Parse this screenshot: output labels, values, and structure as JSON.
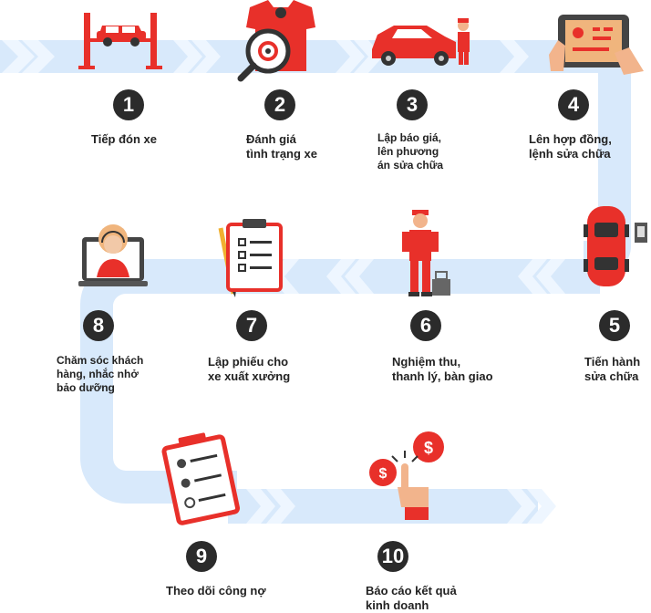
{
  "steps": [
    {
      "number": "1",
      "label": "Tiếp đón xe"
    },
    {
      "number": "2",
      "label": "Đánh giá\ntình trạng xe"
    },
    {
      "number": "3",
      "label": "Lập báo giá,\nlên phương\nán sửa chữa"
    },
    {
      "number": "4",
      "label": "Lên hợp đồng,\nlệnh sửa chữa"
    },
    {
      "number": "5",
      "label": "Tiến hành\nsửa chữa"
    },
    {
      "number": "6",
      "label": "Nghiệm thu,\nthanh lý, bàn giao"
    },
    {
      "number": "7",
      "label": "Lập phiếu cho\nxe xuất xưởng"
    },
    {
      "number": "8",
      "label": "Chăm sóc khách\nhàng, nhắc nhở\nbảo dưỡng"
    },
    {
      "number": "9",
      "label": "Theo dõi công nợ"
    },
    {
      "number": "10",
      "label": "Báo cáo kết quả\nkinh doanh"
    }
  ],
  "icons": {
    "step1": "car-lift-icon",
    "step2": "magnifier-inspection-icon",
    "step3": "mechanic-with-car-icon",
    "step4": "tablet-contract-icon",
    "step5": "repair-car-top-view-icon",
    "step6": "mechanic-with-toolbox-icon",
    "step7": "clipboard-checklist-icon",
    "step8": "customer-support-agent-icon",
    "step9": "clipboard-parts-icon",
    "step10": "hand-tapping-dollar-icon",
    "dollar_symbol": "$"
  },
  "colors": {
    "path": "#d8e9fb",
    "chevron": "#eef6ff",
    "accent": "#e8302a",
    "badge": "#2b2b2b"
  }
}
